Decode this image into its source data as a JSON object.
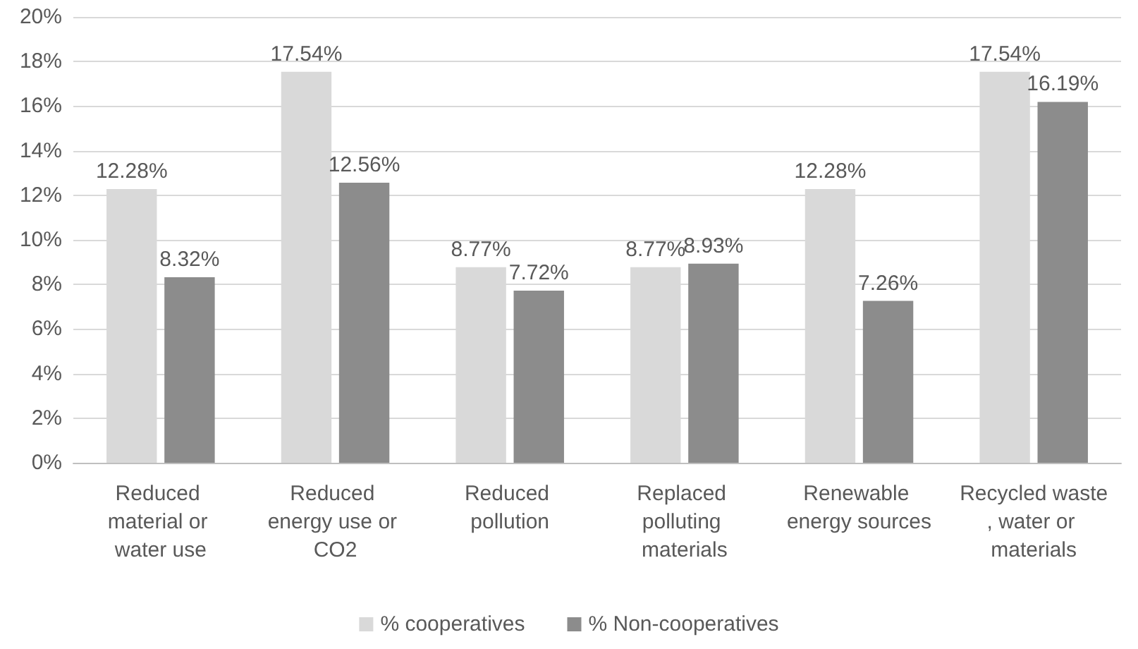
{
  "chart_data": {
    "type": "bar",
    "categories": [
      "Reduced material or water use",
      "Reduced energy use or CO2",
      "Reduced pollution",
      "Replaced polluting materials",
      "Renewable energy sources",
      "Recycled waste, water or materials"
    ],
    "series": [
      {
        "name": "% cooperatives",
        "color": "#d9d9d9",
        "values": [
          12.28,
          17.54,
          8.77,
          8.77,
          12.28,
          17.54
        ],
        "value_labels": [
          "12.28%",
          "17.54%",
          "8.77%",
          "8.77%",
          "12.28%",
          "17.54%"
        ]
      },
      {
        "name": "% Non-cooperatives",
        "color": "#8c8c8c",
        "values": [
          8.32,
          12.56,
          7.72,
          8.93,
          7.26,
          16.19
        ],
        "value_labels": [
          "8.32%",
          "12.56%",
          "7.72%",
          "8.93%",
          "7.26%",
          "16.19%"
        ]
      }
    ],
    "ylim": [
      0,
      20
    ],
    "yticks": [
      {
        "value": 0,
        "label": "0%"
      },
      {
        "value": 2,
        "label": "2%"
      },
      {
        "value": 4,
        "label": "4%"
      },
      {
        "value": 6,
        "label": "6%"
      },
      {
        "value": 8,
        "label": "8%"
      },
      {
        "value": 10,
        "label": "10%"
      },
      {
        "value": 12,
        "label": "12%"
      },
      {
        "value": 14,
        "label": "14%"
      },
      {
        "value": 16,
        "label": "16%"
      },
      {
        "value": 18,
        "label": "18%"
      },
      {
        "value": 20,
        "label": "20%"
      }
    ],
    "grid": "y",
    "legend": "bottom"
  }
}
